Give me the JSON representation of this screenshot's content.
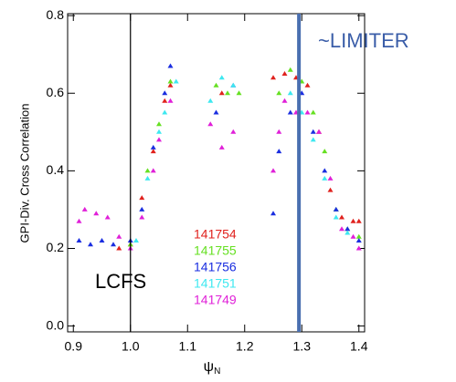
{
  "chart_data": {
    "type": "scatter",
    "y_label": "GPI-Div. Cross Correlation",
    "x_label": "ψ",
    "x_label_sub": "N",
    "annotations": [
      "LCFS",
      "~LIMITER"
    ],
    "reference_lines": [
      {
        "x": 1.0,
        "color": "#000000"
      },
      {
        "x": 1.295,
        "color": "#4a6fb0"
      }
    ],
    "xlim": [
      0.89,
      1.41
    ],
    "ylim": [
      -0.015,
      0.805
    ],
    "xticks": [
      0.9,
      {
        "value": 1,
        "label": "1.0"
      },
      1.1,
      1.2,
      1.3,
      1.4
    ],
    "yticks": [
      {
        "value": 0,
        "label": "0.0"
      },
      0.2,
      0.4,
      0.6,
      0.8
    ],
    "series": [
      {
        "name": "141754",
        "color": "#e0221e",
        "x": [
          0.98,
          1.0,
          1.02,
          1.04,
          1.06,
          1.07,
          1.16,
          1.25,
          1.27,
          1.29,
          1.31,
          1.33,
          1.35,
          1.37,
          1.39,
          1.4
        ],
        "values": [
          0.2,
          0.21,
          0.33,
          0.45,
          0.58,
          0.62,
          0.6,
          0.64,
          0.65,
          0.64,
          0.62,
          0.5,
          0.35,
          0.28,
          0.27,
          0.27
        ]
      },
      {
        "name": "141755",
        "color": "#66e022",
        "x": [
          1.0,
          1.03,
          1.05,
          1.07,
          1.15,
          1.17,
          1.19,
          1.26,
          1.28,
          1.3,
          1.32,
          1.34,
          1.36,
          1.38,
          1.4
        ],
        "values": [
          0.21,
          0.4,
          0.52,
          0.63,
          0.62,
          0.6,
          0.6,
          0.6,
          0.66,
          0.63,
          0.55,
          0.45,
          0.3,
          0.25,
          0.23
        ]
      },
      {
        "name": "141756",
        "color": "#1a2ee0",
        "x": [
          0.91,
          0.93,
          0.95,
          0.97,
          1.0,
          1.02,
          1.04,
          1.06,
          1.07,
          1.15,
          1.18,
          1.25,
          1.26,
          1.28,
          1.3,
          1.32,
          1.34,
          1.36,
          1.38,
          1.4
        ],
        "values": [
          0.22,
          0.21,
          0.22,
          0.21,
          0.22,
          0.3,
          0.46,
          0.6,
          0.67,
          0.55,
          0.62,
          0.29,
          0.45,
          0.55,
          0.6,
          0.5,
          0.4,
          0.3,
          0.25,
          0.22
        ]
      },
      {
        "name": "141751",
        "color": "#3ee8f0",
        "x": [
          1.01,
          1.03,
          1.05,
          1.06,
          1.08,
          1.14,
          1.16,
          1.18,
          1.28,
          1.3,
          1.32,
          1.34,
          1.36,
          1.38
        ],
        "values": [
          0.22,
          0.38,
          0.5,
          0.55,
          0.63,
          0.58,
          0.64,
          0.62,
          0.6,
          0.55,
          0.48,
          0.38,
          0.28,
          0.24
        ]
      },
      {
        "name": "141749",
        "color": "#e020d8",
        "x": [
          0.91,
          0.92,
          0.94,
          0.96,
          0.98,
          1.0,
          1.02,
          1.04,
          1.05,
          1.07,
          1.14,
          1.16,
          1.18,
          1.25,
          1.26,
          1.27,
          1.29,
          1.31,
          1.33,
          1.35,
          1.37,
          1.39,
          1.4
        ],
        "values": [
          0.27,
          0.3,
          0.29,
          0.28,
          0.23,
          0.2,
          0.28,
          0.4,
          0.48,
          0.58,
          0.52,
          0.46,
          0.5,
          0.4,
          0.5,
          0.58,
          0.55,
          0.55,
          0.5,
          0.38,
          0.25,
          0.23,
          0.2
        ]
      }
    ]
  }
}
